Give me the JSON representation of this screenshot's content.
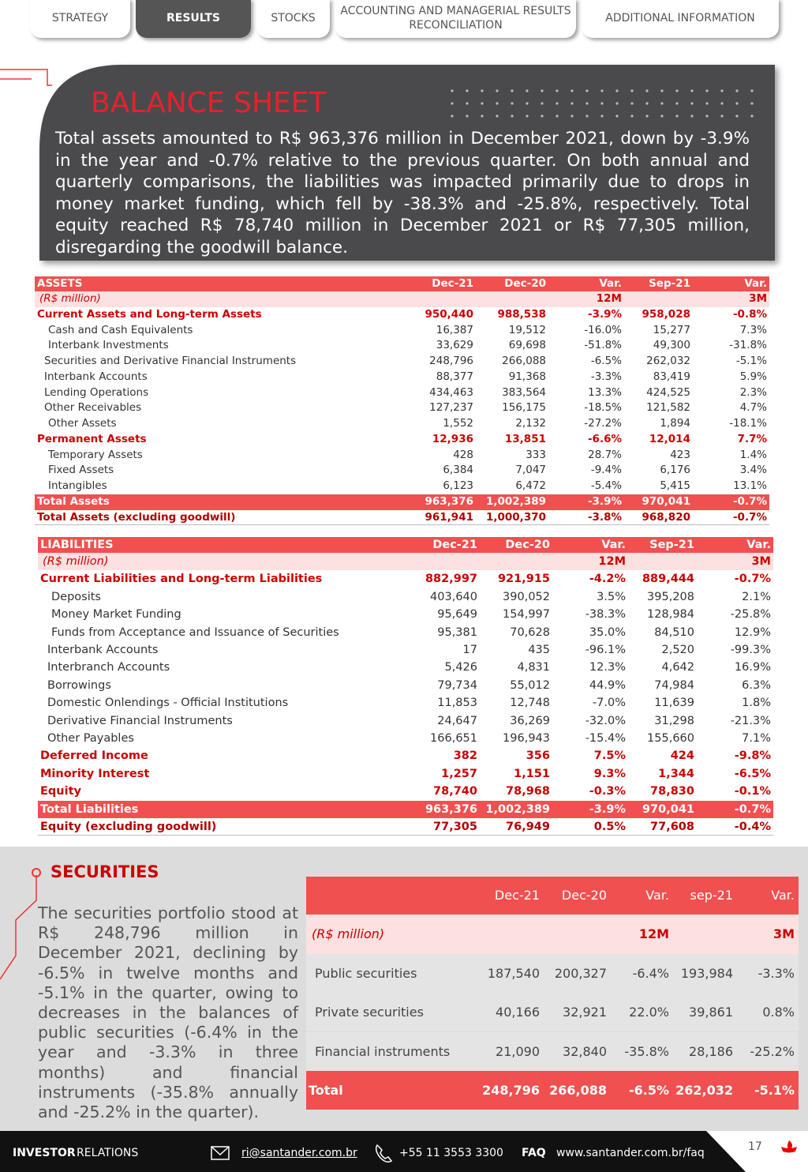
{
  "tabs": [
    "STRATEGY",
    "RESULTS",
    "STOCKS",
    "ACCOUNTING AND MANAGERIAL RESULTS RECONCILIATION",
    "ADDITIONAL INFORMATION"
  ],
  "balance_sheet": {
    "title": "BALANCE SHEET",
    "text": "Total assets amounted to R$ 963,376 million in December 2021, down by -3.9% in the year and -0.7% relative to the previous quarter. On both annual and quarterly comparisons, the liabilities was impacted primarily due to drops in money market funding, which fell by -38.3% and -25.8%, respectively. Total equity reached R$ 78,740 million in December 2021 or R$ 77,305 million, disregarding the goodwill balance."
  },
  "assets_table": {
    "header": [
      "ASSETS",
      "Dec-21",
      "Dec-20",
      "Var.",
      "Sep-21",
      "Var."
    ],
    "subheader": {
      "label": "(R$ million)",
      "var12": "12M",
      "var3": "3M"
    },
    "rows": [
      [
        "Current Assets and Long-term Assets",
        "950,440",
        "988,538",
        "-3.9%",
        "958,028",
        "-0.8%"
      ],
      [
        "Cash and Cash Equivalents",
        "16,387",
        "19,512",
        "-16.0%",
        "15,277",
        "7.3%"
      ],
      [
        "Interbank Investments",
        "33,629",
        "69,698",
        "-51.8%",
        "49,300",
        "-31.8%"
      ],
      [
        "Securities and Derivative Financial Instruments",
        "248,796",
        "266,088",
        "-6.5%",
        "262,032",
        "-5.1%"
      ],
      [
        "Interbank Accounts",
        "88,377",
        "91,368",
        "-3.3%",
        "83,419",
        "5.9%"
      ],
      [
        "Lending Operations",
        "434,463",
        "383,564",
        "13.3%",
        "424,525",
        "2.3%"
      ],
      [
        "Other Receivables",
        "127,237",
        "156,175",
        "-18.5%",
        "121,582",
        "4.7%"
      ],
      [
        "Other Assets",
        "1,552",
        "2,132",
        "-27.2%",
        "1,894",
        "-18.1%"
      ],
      [
        "Permanent Assets",
        "12,936",
        "13,851",
        "-6.6%",
        "12,014",
        "7.7%"
      ],
      [
        "Temporary Assets",
        "428",
        "333",
        "28.7%",
        "423",
        "1.4%"
      ],
      [
        "Fixed Assets",
        "6,384",
        "7,047",
        "-9.4%",
        "6,176",
        "3.4%"
      ],
      [
        "Intangibles",
        "6,123",
        "6,472",
        "-5.4%",
        "5,415",
        "13.1%"
      ],
      [
        "Total Assets",
        "963,376",
        "1,002,389",
        "-3.9%",
        "970,041",
        "-0.7%"
      ],
      [
        "Total Assets (excluding goodwill)",
        "961,941",
        "1,000,370",
        "-3.8%",
        "968,820",
        "-0.7%"
      ]
    ]
  },
  "liabilities_table": {
    "header": [
      "LIABILITIES",
      "Dec-21",
      "Dec-20",
      "Var.",
      "Sep-21",
      "Var."
    ],
    "subheader": {
      "label": "(R$ million)",
      "var12": "12M",
      "var3": "3M"
    },
    "rows": [
      [
        "Current Liabilities and Long-term Liabilities",
        "882,997",
        "921,915",
        "-4.2%",
        "889,444",
        "-0.7%"
      ],
      [
        "Deposits",
        "403,640",
        "390,052",
        "3.5%",
        "395,208",
        "2.1%"
      ],
      [
        "Money Market Funding",
        "95,649",
        "154,997",
        "-38.3%",
        "128,984",
        "-25.8%"
      ],
      [
        "Funds from Acceptance and Issuance of Securities",
        "95,381",
        "70,628",
        "35.0%",
        "84,510",
        "12.9%"
      ],
      [
        "Interbank Accounts",
        "17",
        "435",
        "-96.1%",
        "2,520",
        "-99.3%"
      ],
      [
        "Interbranch Accounts",
        "5,426",
        "4,831",
        "12.3%",
        "4,642",
        "16.9%"
      ],
      [
        "Borrowings",
        "79,734",
        "55,012",
        "44.9%",
        "74,984",
        "6.3%"
      ],
      [
        "Domestic Onlendings - Official Institutions",
        "11,853",
        "12,748",
        "-7.0%",
        "11,639",
        "1.8%"
      ],
      [
        "Derivative Financial Instruments",
        "24,647",
        "36,269",
        "-32.0%",
        "31,298",
        "-21.3%"
      ],
      [
        "Other Payables",
        "166,651",
        "196,943",
        "-15.4%",
        "155,660",
        "7.1%"
      ],
      [
        "Deferred Income",
        "382",
        "356",
        "7.5%",
        "424",
        "-9.8%"
      ],
      [
        "Minority Interest",
        "1,257",
        "1,151",
        "9.3%",
        "1,344",
        "-6.5%"
      ],
      [
        "Equity",
        "78,740",
        "78,968",
        "-0.3%",
        "78,830",
        "-0.1%"
      ],
      [
        "Total Liabilities",
        "963,376",
        "1,002,389",
        "-3.9%",
        "970,041",
        "-0.7%"
      ],
      [
        "Equity (excluding goodwill)",
        "77,305",
        "76,949",
        "0.5%",
        "77,608",
        "-0.4%"
      ]
    ]
  },
  "securities": {
    "title": "SECURITIES",
    "text": "The securities portfolio stood at R$ 248,796 million in December 2021, declining by -6.5% in twelve months and -5.1% in the quarter, owing to decreases in the balances of public securities (-6.4% in the year and -3.3% in three months) and financial instruments (-35.8% annually and -25.2% in the quarter).",
    "table": {
      "header": [
        "Dec-21",
        "Dec-20",
        "Var.",
        "sep-21",
        "Var."
      ],
      "subheader": {
        "label": "(R$ million)",
        "var12": "12M",
        "var3": "3M"
      },
      "rows": [
        [
          "Public securities",
          "187,540",
          "200,327",
          "-6.4%",
          "193,984",
          "-3.3%"
        ],
        [
          "Private securities",
          "40,166",
          "32,921",
          "22.0%",
          "39,861",
          "0.8%"
        ],
        [
          "Financial instruments",
          "21,090",
          "32,840",
          "-35.8%",
          "28,186",
          "-25.2%"
        ],
        [
          "Total",
          "248,796",
          "266,088",
          "-6.5%",
          "262,032",
          "-5.1%"
        ]
      ]
    }
  },
  "footer": {
    "investor": "INVESTOR",
    "relations": "RELATIONS",
    "email": "ri@santander.com.br",
    "phone": "+55 11 3553 3300",
    "faq": "FAQ",
    "url": "www.santander.com.br/faq",
    "page": "17"
  }
}
